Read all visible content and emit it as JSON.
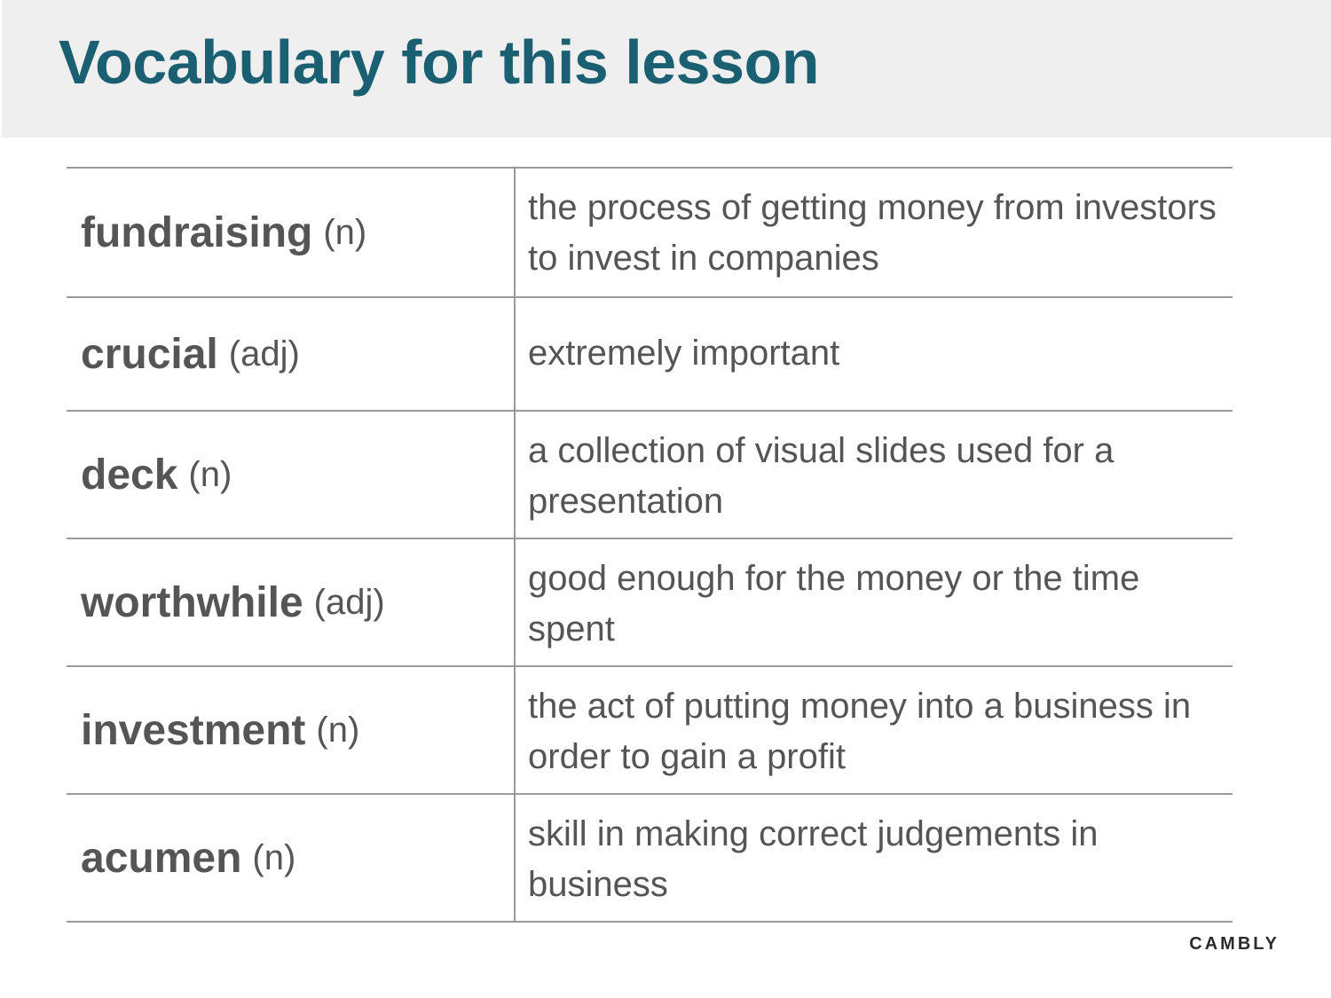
{
  "slide": {
    "title": "Vocabulary for this lesson",
    "brand": "CAMBLY"
  },
  "vocabulary": [
    {
      "term": "fundraising",
      "pos": "(n)",
      "definition": "the process of getting money from investors to invest in companies"
    },
    {
      "term": "crucial",
      "pos": "(adj)",
      "definition": "extremely important"
    },
    {
      "term": "deck",
      "pos": "(n)",
      "definition": "a collection of visual slides used for a presentation"
    },
    {
      "term": "worthwhile",
      "pos": "(adj)",
      "definition": "good enough for the money or the time spent"
    },
    {
      "term": "investment",
      "pos": "(n)",
      "definition": "the act of putting money into a business in order to gain a profit"
    },
    {
      "term": "acumen",
      "pos": "(n)",
      "definition": "skill in making correct judgements in business"
    }
  ],
  "colors": {
    "title": "#1b5f73",
    "header_bg": "#efefef",
    "text": "#555555",
    "rule": "#9a9a9a"
  }
}
